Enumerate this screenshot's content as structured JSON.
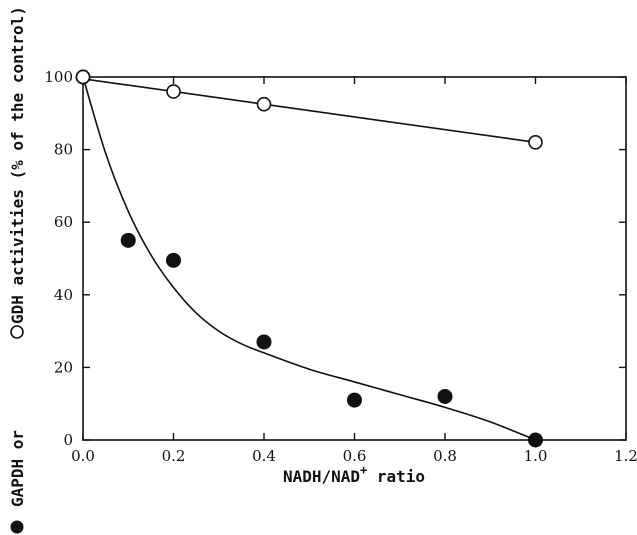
{
  "chart_data": {
    "type": "scatter",
    "xlabel_parts": {
      "base": "NADH/NAD",
      "sup": "+",
      "tail": " ratio"
    },
    "ylabel_parts": {
      "part1": "GAPDH or ",
      "part2": " GDH activities (% of the control)"
    },
    "xlim": [
      0.0,
      1.2
    ],
    "ylim": [
      0,
      100
    ],
    "xticks": [
      "0.0",
      "0.2",
      "0.4",
      "0.6",
      "0.8",
      "1.0",
      "1.2"
    ],
    "yticks": [
      "0",
      "20",
      "40",
      "60",
      "80",
      "100"
    ],
    "grid": false,
    "series": [
      {
        "marker": "filled-circle",
        "points": [
          {
            "x": 0.0,
            "y": 100
          },
          {
            "x": 0.1,
            "y": 55
          },
          {
            "x": 0.2,
            "y": 49.5
          },
          {
            "x": 0.4,
            "y": 27
          },
          {
            "x": 0.6,
            "y": 11
          },
          {
            "x": 0.8,
            "y": 12
          },
          {
            "x": 1.0,
            "y": 0
          }
        ],
        "fit_curve": [
          {
            "x": 0.0,
            "y": 100
          },
          {
            "x": 0.05,
            "y": 79
          },
          {
            "x": 0.1,
            "y": 63
          },
          {
            "x": 0.15,
            "y": 51
          },
          {
            "x": 0.2,
            "y": 42
          },
          {
            "x": 0.25,
            "y": 35
          },
          {
            "x": 0.3,
            "y": 30
          },
          {
            "x": 0.35,
            "y": 26.5
          },
          {
            "x": 0.4,
            "y": 24
          },
          {
            "x": 0.5,
            "y": 19.5
          },
          {
            "x": 0.6,
            "y": 16
          },
          {
            "x": 0.7,
            "y": 12.5
          },
          {
            "x": 0.8,
            "y": 9
          },
          {
            "x": 0.9,
            "y": 5
          },
          {
            "x": 1.0,
            "y": 0
          }
        ]
      },
      {
        "marker": "open-circle",
        "points": [
          {
            "x": 0.0,
            "y": 100
          },
          {
            "x": 0.2,
            "y": 96
          },
          {
            "x": 0.4,
            "y": 92.5
          },
          {
            "x": 1.0,
            "y": 82
          }
        ],
        "fit_curve": [
          {
            "x": 0.0,
            "y": 99.5
          },
          {
            "x": 1.0,
            "y": 82
          }
        ]
      }
    ]
  }
}
